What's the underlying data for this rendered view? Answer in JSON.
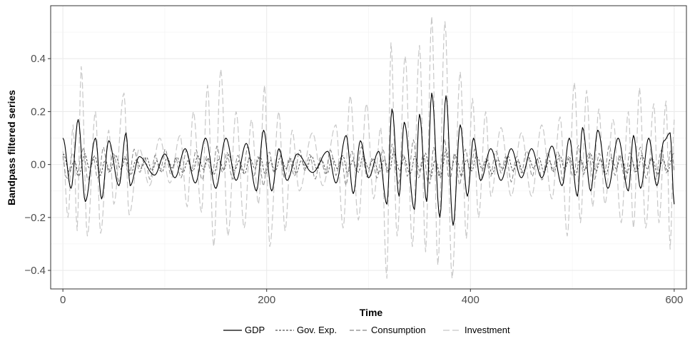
{
  "chart_data": {
    "type": "line",
    "title": "",
    "xlabel": "Time",
    "ylabel": "Bandpass filtered series",
    "xlim": [
      -12,
      612
    ],
    "ylim": [
      -0.47,
      0.6
    ],
    "xticks": [
      0,
      200,
      400,
      600
    ],
    "yticks": [
      -0.4,
      -0.2,
      0.0,
      0.2,
      0.4
    ],
    "xtick_labels": [
      "0",
      "200",
      "400",
      "600"
    ],
    "ytick_labels": [
      "−0.4",
      "−0.2",
      "0.0",
      "0.2",
      "0.4"
    ],
    "grid": true,
    "legend_position": "bottom",
    "n_points": 601,
    "series": [
      {
        "name": "GDP",
        "color": "#000000",
        "dash": "solid",
        "values_note": "",
        "segments": [
          [
            0,
            0.1
          ],
          [
            8,
            -0.09
          ],
          [
            15,
            0.17
          ],
          [
            22,
            -0.14
          ],
          [
            32,
            0.1
          ],
          [
            38,
            -0.13
          ],
          [
            45,
            0.09
          ],
          [
            55,
            -0.08
          ],
          [
            62,
            0.12
          ],
          [
            66,
            -0.08
          ],
          [
            75,
            0.03
          ],
          [
            90,
            -0.04
          ],
          [
            100,
            0.04
          ],
          [
            110,
            -0.05
          ],
          [
            120,
            0.06
          ],
          [
            130,
            -0.07
          ],
          [
            140,
            0.1
          ],
          [
            150,
            -0.09
          ],
          [
            160,
            0.1
          ],
          [
            170,
            -0.06
          ],
          [
            180,
            0.08
          ],
          [
            190,
            -0.1
          ],
          [
            197,
            0.13
          ],
          [
            205,
            -0.1
          ],
          [
            212,
            0.06
          ],
          [
            220,
            -0.06
          ],
          [
            230,
            0.04
          ],
          [
            245,
            -0.03
          ],
          [
            260,
            0.05
          ],
          [
            268,
            -0.07
          ],
          [
            278,
            0.11
          ],
          [
            285,
            -0.11
          ],
          [
            292,
            0.09
          ],
          [
            300,
            -0.05
          ],
          [
            310,
            0.05
          ],
          [
            318,
            -0.15
          ],
          [
            323,
            0.21
          ],
          [
            330,
            -0.12
          ],
          [
            335,
            0.16
          ],
          [
            345,
            -0.17
          ],
          [
            350,
            0.19
          ],
          [
            357,
            -0.14
          ],
          [
            362,
            0.27
          ],
          [
            370,
            -0.2
          ],
          [
            376,
            0.26
          ],
          [
            383,
            -0.23
          ],
          [
            390,
            0.15
          ],
          [
            397,
            -0.12
          ],
          [
            403,
            0.1
          ],
          [
            410,
            -0.06
          ],
          [
            420,
            0.06
          ],
          [
            430,
            -0.06
          ],
          [
            440,
            0.06
          ],
          [
            450,
            -0.05
          ],
          [
            460,
            0.06
          ],
          [
            470,
            -0.05
          ],
          [
            480,
            0.07
          ],
          [
            490,
            -0.08
          ],
          [
            497,
            0.1
          ],
          [
            505,
            -0.12
          ],
          [
            510,
            0.14
          ],
          [
            518,
            -0.1
          ],
          [
            525,
            0.13
          ],
          [
            535,
            -0.09
          ],
          [
            545,
            0.1
          ],
          [
            555,
            -0.1
          ],
          [
            560,
            0.11
          ],
          [
            567,
            -0.09
          ],
          [
            575,
            0.1
          ],
          [
            583,
            -0.08
          ],
          [
            590,
            0.09
          ],
          [
            596,
            0.12
          ],
          [
            600,
            -0.15
          ]
        ]
      },
      {
        "name": "Gov. Exp.",
        "color": "#555555",
        "dash": "dotted",
        "amplitude": 0.05
      },
      {
        "name": "Consumption",
        "color": "#888888",
        "dash": "dashed",
        "amplitude": 0.09
      },
      {
        "name": "Investment",
        "color": "#c8c8c8",
        "dash": "longdash",
        "segments": [
          [
            0,
            0.05
          ],
          [
            5,
            -0.2
          ],
          [
            10,
            0.15
          ],
          [
            14,
            -0.25
          ],
          [
            18,
            0.37
          ],
          [
            24,
            -0.27
          ],
          [
            32,
            0.2
          ],
          [
            37,
            -0.26
          ],
          [
            45,
            0.13
          ],
          [
            50,
            -0.15
          ],
          [
            60,
            0.27
          ],
          [
            65,
            -0.19
          ],
          [
            75,
            0.06
          ],
          [
            85,
            -0.08
          ],
          [
            95,
            0.1
          ],
          [
            105,
            -0.07
          ],
          [
            115,
            0.11
          ],
          [
            122,
            -0.16
          ],
          [
            128,
            0.2
          ],
          [
            136,
            -0.18
          ],
          [
            142,
            0.3
          ],
          [
            148,
            -0.31
          ],
          [
            155,
            0.36
          ],
          [
            162,
            -0.27
          ],
          [
            170,
            0.2
          ],
          [
            178,
            -0.24
          ],
          [
            185,
            0.17
          ],
          [
            192,
            -0.15
          ],
          [
            198,
            0.3
          ],
          [
            203,
            -0.31
          ],
          [
            212,
            0.2
          ],
          [
            218,
            -0.25
          ],
          [
            225,
            0.13
          ],
          [
            232,
            -0.1
          ],
          [
            245,
            0.12
          ],
          [
            255,
            -0.08
          ],
          [
            268,
            0.15
          ],
          [
            275,
            -0.24
          ],
          [
            282,
            0.26
          ],
          [
            290,
            -0.21
          ],
          [
            298,
            0.23
          ],
          [
            305,
            -0.13
          ],
          [
            312,
            0.14
          ],
          [
            318,
            -0.43
          ],
          [
            322,
            0.46
          ],
          [
            328,
            -0.27
          ],
          [
            336,
            0.41
          ],
          [
            343,
            -0.31
          ],
          [
            350,
            0.45
          ],
          [
            356,
            -0.33
          ],
          [
            362,
            0.56
          ],
          [
            368,
            -0.38
          ],
          [
            375,
            0.54
          ],
          [
            382,
            -0.43
          ],
          [
            390,
            0.35
          ],
          [
            396,
            -0.28
          ],
          [
            402,
            0.25
          ],
          [
            408,
            -0.2
          ],
          [
            415,
            0.2
          ],
          [
            420,
            -0.12
          ],
          [
            430,
            0.14
          ],
          [
            440,
            -0.12
          ],
          [
            450,
            0.12
          ],
          [
            460,
            -0.12
          ],
          [
            470,
            0.15
          ],
          [
            480,
            -0.13
          ],
          [
            488,
            0.18
          ],
          [
            495,
            -0.27
          ],
          [
            502,
            0.31
          ],
          [
            508,
            -0.22
          ],
          [
            514,
            0.28
          ],
          [
            520,
            -0.16
          ],
          [
            526,
            0.21
          ],
          [
            532,
            -0.15
          ],
          [
            540,
            0.17
          ],
          [
            548,
            -0.22
          ],
          [
            555,
            0.2
          ],
          [
            560,
            -0.24
          ],
          [
            566,
            0.29
          ],
          [
            572,
            -0.24
          ],
          [
            580,
            0.23
          ],
          [
            585,
            -0.22
          ],
          [
            592,
            0.24
          ],
          [
            596,
            -0.32
          ],
          [
            600,
            0.17
          ]
        ]
      }
    ]
  },
  "legend": {
    "items": [
      "GDP",
      "Gov. Exp.",
      "Consumption",
      "Investment"
    ]
  }
}
